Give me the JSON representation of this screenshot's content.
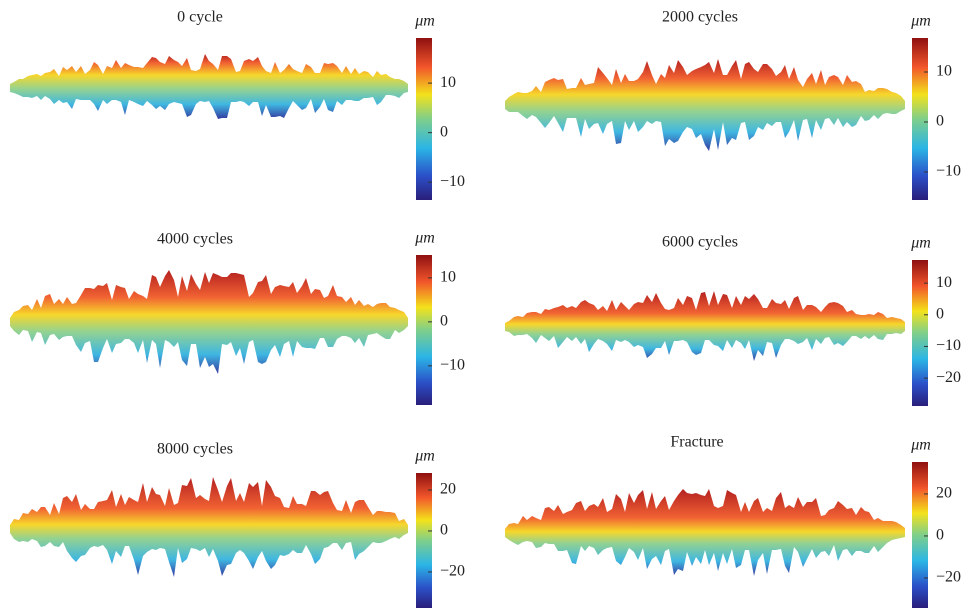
{
  "panels": [
    {
      "title": "0 cycle",
      "unit": "μm",
      "range": [
        -13.6,
        19.1
      ],
      "ticks": [
        {
          "value": -10,
          "label": "−10"
        },
        0,
        10
      ]
    },
    {
      "title": "2000 cycles",
      "unit": "μm",
      "range": [
        -15.6,
        16.8
      ],
      "ticks": [
        {
          "value": -10,
          "label": "−10"
        },
        0,
        10
      ]
    },
    {
      "title": "4000 cycles",
      "unit": "μm",
      "range": [
        -18.9,
        15.2
      ],
      "ticks": [
        {
          "value": -10,
          "label": "−10"
        },
        0,
        10
      ]
    },
    {
      "title": "6000 cycles",
      "unit": "μm",
      "range": [
        -28.8,
        17.3
      ],
      "ticks": [
        {
          "value": -20,
          "label": "−20"
        },
        {
          "value": -10,
          "label": "−10"
        },
        0,
        10
      ]
    },
    {
      "title": "8000 cycles",
      "unit": "μm",
      "range": [
        -37.6,
        28.3
      ],
      "ticks": [
        {
          "value": -20,
          "label": "−20"
        },
        0,
        20
      ]
    },
    {
      "title": "Fracture",
      "unit": "μm",
      "range": [
        -34.3,
        35.2
      ],
      "ticks": [
        {
          "value": -20,
          "label": "−20"
        },
        0,
        20
      ]
    }
  ]
}
